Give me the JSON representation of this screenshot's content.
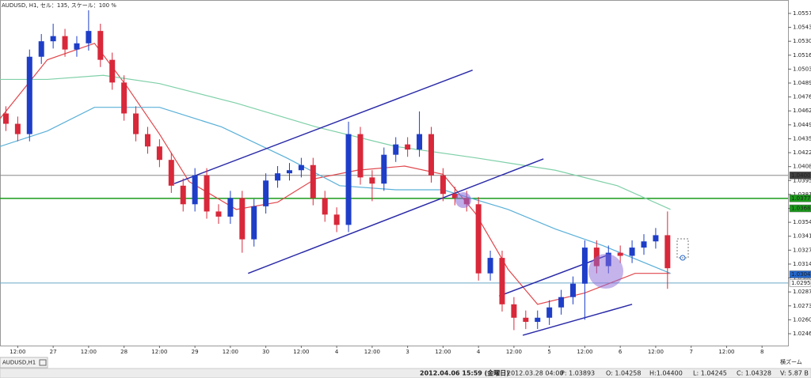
{
  "header": {
    "title": "AUDUSD, H1, セル：135, スケール：100 %",
    "tab": "AUDUSD,H1"
  },
  "status": {
    "time": "2012.04.06 15:59 (金曜日)",
    "bar": "2012.03.28 04:00",
    "p": "P: 1.03893",
    "o": "O: 1.04258",
    "h": "H:1.04400",
    "l": "L: 1.04245",
    "c": "C: 1.04328",
    "v": "V: 5.87 B",
    "zoom": "横ズーム"
  },
  "chart_data": {
    "type": "candlestick",
    "grid": false,
    "bull_color": "#1e3ec8",
    "bear_color": "#d8283a",
    "x": [
      2,
      6,
      10,
      14,
      18,
      22,
      26,
      30,
      34,
      38,
      42,
      46,
      50,
      54,
      58,
      62,
      66,
      70,
      74,
      78,
      82,
      86,
      90,
      94,
      98,
      102,
      106,
      110,
      114,
      118,
      122,
      126,
      130,
      134,
      138,
      142,
      146,
      150,
      154,
      158,
      162,
      166,
      170,
      174,
      178,
      182,
      186,
      190,
      194,
      198,
      202,
      206,
      210,
      214,
      218,
      222,
      226
    ],
    "open": [
      1.046,
      1.045,
      1.044,
      1.0515,
      1.053,
      1.0535,
      1.0522,
      1.0528,
      1.054,
      1.0512,
      1.049,
      1.046,
      1.044,
      1.0428,
      1.0415,
      1.039,
      1.0372,
      1.04,
      1.0365,
      1.036,
      1.0378,
      1.0338,
      1.037,
      1.0395,
      1.0402,
      1.0405,
      1.041,
      1.0378,
      1.0362,
      1.0352,
      1.044,
      1.0398,
      1.0392,
      1.042,
      1.043,
      1.0425,
      1.044,
      1.04,
      1.0382,
      1.0378,
      1.0372,
      1.0305,
      1.032,
      1.0275,
      1.0262,
      1.0258,
      1.0262,
      1.0272,
      1.0282,
      1.0295,
      1.033,
      1.0312,
      1.0325,
      1.0322,
      1.033,
      1.0336,
      1.0342
    ],
    "high": [
      1.0467,
      1.0457,
      1.0522,
      1.0537,
      1.0547,
      1.0542,
      1.0535,
      1.056,
      1.0547,
      1.0519,
      1.0497,
      1.0467,
      1.0447,
      1.0435,
      1.0422,
      1.0397,
      1.0407,
      1.0407,
      1.0372,
      1.0385,
      1.0385,
      1.0377,
      1.0402,
      1.0409,
      1.0412,
      1.0417,
      1.0417,
      1.0385,
      1.0369,
      1.0452,
      1.0447,
      1.0405,
      1.0427,
      1.0437,
      1.0437,
      1.0462,
      1.0447,
      1.0407,
      1.0389,
      1.0385,
      1.0379,
      1.0327,
      1.0327,
      1.0282,
      1.0269,
      1.0269,
      1.0279,
      1.0289,
      1.0302,
      1.0337,
      1.0337,
      1.0332,
      1.0332,
      1.0337,
      1.0343,
      1.0349,
      1.0365
    ],
    "low": [
      1.0443,
      1.0433,
      1.0433,
      1.0508,
      1.0523,
      1.0515,
      1.0515,
      1.0521,
      1.0505,
      1.0483,
      1.0453,
      1.0433,
      1.0421,
      1.0408,
      1.0383,
      1.0365,
      1.0365,
      1.0358,
      1.0353,
      1.0353,
      1.0325,
      1.0331,
      1.0363,
      1.0388,
      1.0395,
      1.0398,
      1.0371,
      1.0355,
      1.0345,
      1.0345,
      1.0391,
      1.0375,
      1.0385,
      1.0413,
      1.0418,
      1.0418,
      1.0393,
      1.0375,
      1.0371,
      1.0365,
      1.0298,
      1.0298,
      1.0268,
      1.025,
      1.0251,
      1.0251,
      1.0255,
      1.0265,
      1.0275,
      1.026,
      1.0305,
      1.0305,
      1.0315,
      1.0315,
      1.0323,
      1.0329,
      1.029
    ],
    "close": [
      1.045,
      1.044,
      1.0515,
      1.053,
      1.0535,
      1.0522,
      1.0528,
      1.054,
      1.0512,
      1.049,
      1.046,
      1.044,
      1.0428,
      1.0415,
      1.039,
      1.0372,
      1.04,
      1.0365,
      1.036,
      1.0378,
      1.0338,
      1.037,
      1.0395,
      1.0402,
      1.0405,
      1.041,
      1.0378,
      1.0362,
      1.0352,
      1.044,
      1.0398,
      1.0392,
      1.042,
      1.043,
      1.0425,
      1.044,
      1.04,
      1.0382,
      1.0378,
      1.0372,
      1.0305,
      1.032,
      1.0275,
      1.0262,
      1.0258,
      1.0262,
      1.0272,
      1.0282,
      1.0295,
      1.033,
      1.0312,
      1.0325,
      1.0322,
      1.033,
      1.0336,
      1.0342,
      1.031
    ],
    "indicators": [
      {
        "color": "#e0474c",
        "x": [
          0,
          16,
          32,
          43,
          54,
          64,
          80,
          94,
          107,
          121,
          137,
          150,
          161,
          172,
          182,
          198,
          215,
          227
        ],
        "values": [
          1.0455,
          1.0512,
          1.0528,
          1.0486,
          1.044,
          1.0394,
          1.0367,
          1.0374,
          1.0397,
          1.0405,
          1.0409,
          1.0401,
          1.0363,
          1.0309,
          1.0275,
          1.0286,
          1.0305,
          1.0305
        ]
      },
      {
        "color": "#5ab0d8",
        "x": [
          0,
          16,
          32,
          54,
          75,
          97,
          115,
          134,
          150,
          172,
          188,
          204,
          227
        ],
        "values": [
          1.0428,
          1.0443,
          1.0466,
          1.0466,
          1.0447,
          1.0417,
          1.039,
          1.0386,
          1.0386,
          1.0367,
          1.0348,
          1.0332,
          1.0305
        ]
      },
      {
        "color": "#7fd0a8",
        "x": [
          0,
          16,
          35,
          54,
          80,
          107,
          134,
          161,
          188,
          209,
          227
        ],
        "values": [
          1.0493,
          1.0493,
          1.0497,
          1.0489,
          1.047,
          1.0447,
          1.0428,
          1.0417,
          1.0405,
          1.039,
          1.0367
        ]
      }
    ],
    "trendlines": [
      {
        "color": "#2a2aa8",
        "x": [
          59,
          160
        ],
        "values": [
          1.0392,
          1.0502
        ]
      },
      {
        "color": "#2a2aa8",
        "x": [
          84,
          184
        ],
        "values": [
          1.0305,
          1.0416
        ]
      },
      {
        "color": "#2a2aa8",
        "x": [
          169,
          206
        ],
        "values": [
          1.0283,
          1.0323
        ]
      },
      {
        "color": "#2a2aa8",
        "x": [
          177,
          214
        ],
        "values": [
          1.0245,
          1.0275
        ]
      }
    ],
    "levels": [
      {
        "value": 1.04,
        "label": "1.04000",
        "color": "#888888",
        "box": "#404040"
      },
      {
        "value": 1.03777,
        "label": "1.03777",
        "color": "#1a9a1a",
        "box": "#1a9a1a"
      },
      {
        "value": 1.0368,
        "label": "1.03680",
        "color": null,
        "box": "#1a9a1a"
      },
      {
        "value": 1.0304,
        "label": "1.03040",
        "color": null,
        "box": "#2266cc"
      },
      {
        "value": 1.02957,
        "label": "1.02957",
        "color": "#6aa8c8",
        "box": "#ffffff"
      }
    ],
    "xlim": [
      0,
      266.8
    ],
    "ylim": [
      1.0235,
      1.057
    ],
    "xticks": [
      {
        "value": 6,
        "label": "12:00"
      },
      {
        "value": 18,
        "label": "27"
      },
      {
        "value": 30,
        "label": "12:00"
      },
      {
        "value": 42,
        "label": "28"
      },
      {
        "value": 54,
        "label": "12:00"
      },
      {
        "value": 66,
        "label": "29"
      },
      {
        "value": 78,
        "label": "12:00"
      },
      {
        "value": 90,
        "label": "30"
      },
      {
        "value": 102,
        "label": "12:00"
      },
      {
        "value": 114,
        "label": "4"
      },
      {
        "value": 126,
        "label": "12:00"
      },
      {
        "value": 138,
        "label": "3"
      },
      {
        "value": 150,
        "label": "12:00"
      },
      {
        "value": 162,
        "label": "4"
      },
      {
        "value": 174,
        "label": "12:00"
      },
      {
        "value": 186,
        "label": "5"
      },
      {
        "value": 198,
        "label": "12:00"
      },
      {
        "value": 210,
        "label": "6"
      },
      {
        "value": 222,
        "label": "12:00"
      },
      {
        "value": 234,
        "label": "7"
      },
      {
        "value": 246,
        "label": "12:00"
      },
      {
        "value": 258,
        "label": "8"
      }
    ],
    "yticks": [
      {
        "value": 1.0557,
        "label": "1.05570"
      },
      {
        "value": 1.05435,
        "label": "1.05435"
      },
      {
        "value": 1.053,
        "label": "1.05300"
      },
      {
        "value": 1.05165,
        "label": "1.05165"
      },
      {
        "value": 1.0503,
        "label": "1.05030"
      },
      {
        "value": 1.04895,
        "label": "1.04895"
      },
      {
        "value": 1.0476,
        "label": "1.04760"
      },
      {
        "value": 1.04625,
        "label": "1.04625"
      },
      {
        "value": 1.0449,
        "label": "1.04490"
      },
      {
        "value": 1.04355,
        "label": "1.04355"
      },
      {
        "value": 1.0422,
        "label": "1.04220"
      },
      {
        "value": 1.04085,
        "label": "1.04085"
      },
      {
        "value": 1.0395,
        "label": "1.03950"
      },
      {
        "value": 1.03815,
        "label": "1.03815"
      },
      {
        "value": 1.0368,
        "label": "1.03680"
      },
      {
        "value": 1.03545,
        "label": "1.03545"
      },
      {
        "value": 1.0341,
        "label": "1.03410"
      },
      {
        "value": 1.03275,
        "label": "1.03275"
      },
      {
        "value": 1.0314,
        "label": "1.03140"
      },
      {
        "value": 1.03005,
        "label": "1.03005"
      },
      {
        "value": 1.0287,
        "label": "1.02870"
      },
      {
        "value": 1.02735,
        "label": "1.02735"
      },
      {
        "value": 1.026,
        "label": "1.02600"
      },
      {
        "value": 1.02465,
        "label": "1.02465"
      }
    ]
  }
}
